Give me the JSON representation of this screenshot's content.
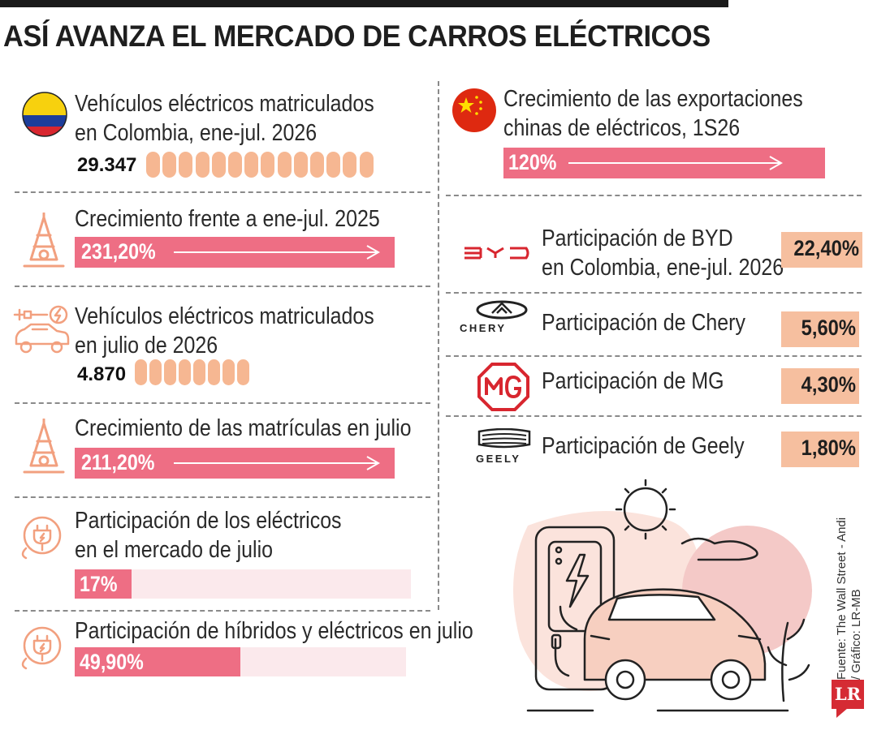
{
  "title": "ASÍ AVANZA EL MERCADO DE CARROS ELÉCTRICOS",
  "left": {
    "matriculados_total": {
      "label_l1": "Vehículos eléctricos matriculados",
      "label_l2": "en Colombia, ene-jul. 2026",
      "value": "29.347",
      "pill_count": 14
    },
    "crecimiento_anual": {
      "label": "Crecimiento frente a ene-jul. 2025",
      "value": "231,20%"
    },
    "matriculados_julio": {
      "label_l1": "Vehículos eléctricos matriculados",
      "label_l2": "en julio de 2026",
      "value": "4.870",
      "pill_count": 8
    },
    "crecimiento_julio": {
      "label": "Crecimiento de las matrículas en julio",
      "value": "211,20%"
    },
    "part_electricos": {
      "label_l1": "Participación de los eléctricos",
      "label_l2": "en el mercado de julio",
      "value": "17%",
      "fraction": 0.17
    },
    "part_hibridos": {
      "label": "Participación de híbridos y eléctricos en julio",
      "value": "49,90%",
      "fraction": 0.499
    }
  },
  "right": {
    "exportaciones": {
      "label_l1": "Crecimiento de las exportaciones",
      "label_l2": "chinas de eléctricos, 1S26",
      "value": "120%"
    },
    "byd": {
      "label_l1": "Participación de BYD",
      "label_l2": "en Colombia, ene-jul. 2026",
      "value": "22,40%"
    },
    "chery": {
      "brand": "CHERY",
      "label": "Participación de Chery",
      "value": "5,60%"
    },
    "mg": {
      "label": "Participación de MG",
      "value": "4,30%"
    },
    "geely": {
      "brand": "GEELY",
      "label": "Participación de Geely",
      "value": "1,80%"
    }
  },
  "source": {
    "line1": "Fuente: The Wall Street - Andi",
    "line2": "/ Gráfico: LR-MB"
  },
  "logo": "LR",
  "chart_data": {
    "type": "table",
    "title": "ASÍ AVANZA EL MERCADO DE CARROS ELÉCTRICOS",
    "rows": [
      {
        "label": "Vehículos eléctricos matriculados en Colombia, ene-jul. 2026",
        "value": 29347
      },
      {
        "label": "Crecimiento frente a ene-jul. 2025",
        "value": 231.2,
        "unit": "%"
      },
      {
        "label": "Vehículos eléctricos matriculados en julio de 2026",
        "value": 4870
      },
      {
        "label": "Crecimiento de las matrículas en julio",
        "value": 211.2,
        "unit": "%"
      },
      {
        "label": "Participación de los eléctricos en el mercado de julio",
        "value": 17,
        "unit": "%"
      },
      {
        "label": "Participación de híbridos y eléctricos en julio",
        "value": 49.9,
        "unit": "%"
      },
      {
        "label": "Crecimiento de las exportaciones chinas de eléctricos, 1S26",
        "value": 120,
        "unit": "%"
      },
      {
        "label": "Participación de BYD en Colombia, ene-jul. 2026",
        "value": 22.4,
        "unit": "%"
      },
      {
        "label": "Participación de Chery",
        "value": 5.6,
        "unit": "%"
      },
      {
        "label": "Participación de MG",
        "value": 4.3,
        "unit": "%"
      },
      {
        "label": "Participación de Geely",
        "value": 1.8,
        "unit": "%"
      }
    ]
  },
  "colors": {
    "bar": "#ee6e84",
    "track": "#fbe9ec",
    "pill": "#f6b792",
    "pct_box": "#f6bf9f",
    "logo": "#d52b34"
  },
  "icons": [
    "colombia-flag-icon",
    "growth-tower-icon",
    "ev-car-charging-icon",
    "plug-icon",
    "china-flag-icon",
    "byd-logo-icon",
    "chery-logo-icon",
    "mg-logo-icon",
    "geely-logo-icon",
    "charging-station-illustration"
  ]
}
